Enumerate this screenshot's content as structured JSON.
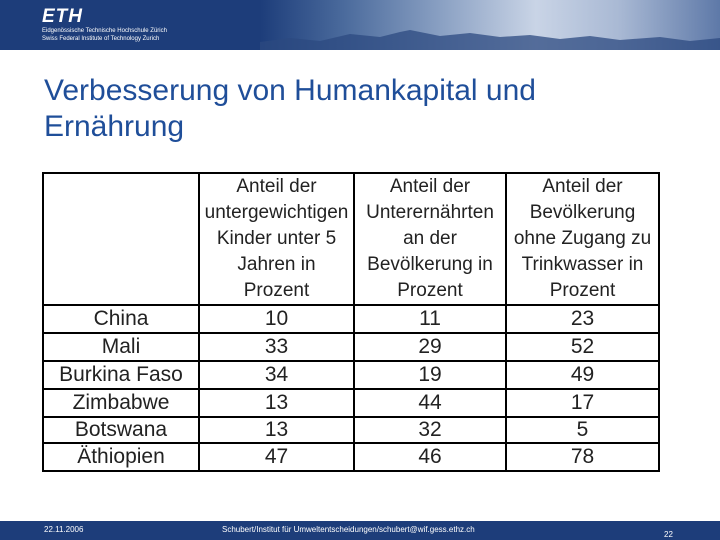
{
  "header": {
    "logo_text": "ETH",
    "subtitle_line1": "Eidgenössische Technische Hochschule Zürich",
    "subtitle_line2": "Swiss Federal Institute of Technology Zurich",
    "brand_color": "#1d3d7a"
  },
  "slide": {
    "title_line1": "Verbesserung von Humankapital und",
    "title_line2": "Ernährung",
    "title_color": "#1f4e99"
  },
  "table": {
    "headers": [
      "",
      "Anteil der untergewichtigen Kinder unter 5 Jahren in Prozent",
      "Anteil der Unterernährten an der Bevölkerung in Prozent",
      "Anteil der Bevölkerung ohne Zugang zu Trinkwasser in Prozent"
    ],
    "rows": [
      [
        "China",
        "10",
        "11",
        "23"
      ],
      [
        "Mali",
        "33",
        "29",
        "52"
      ],
      [
        "Burkina Faso",
        "34",
        "19",
        "49"
      ],
      [
        "Zimbabwe",
        "13",
        "44",
        "17"
      ],
      [
        "Botswana",
        "13",
        "32",
        "5"
      ],
      [
        "Äthiopien",
        "47",
        "46",
        "78"
      ]
    ]
  },
  "footer": {
    "date": "22.11.2006",
    "author": "Schubert/Institut für Umweltentscheidungen/schubert@wif.gess.ethz.ch",
    "page": "22"
  }
}
